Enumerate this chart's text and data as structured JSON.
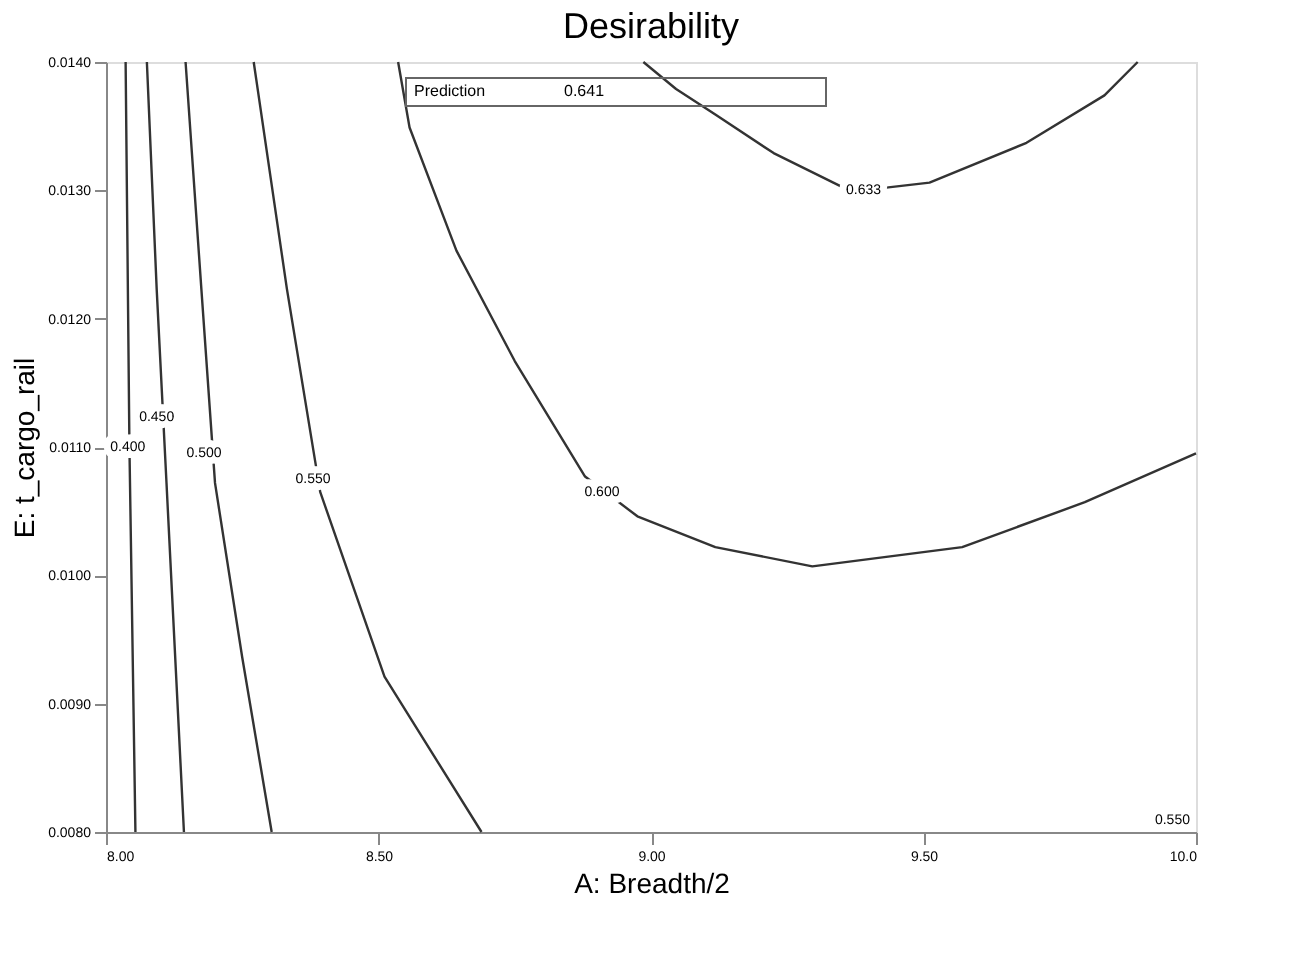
{
  "chart_data": {
    "type": "line",
    "title": "Desirability",
    "xlabel": "A: Breadth/2",
    "ylabel": "E: t_cargo_rail",
    "xlim": [
      8.0,
      10.0
    ],
    "ylim": [
      0.008,
      0.014
    ],
    "xticks": [
      {
        "value": 8.0,
        "label": "8.00"
      },
      {
        "value": 8.5,
        "label": "8.50"
      },
      {
        "value": 9.0,
        "label": "9.00"
      },
      {
        "value": 9.5,
        "label": "9.50"
      },
      {
        "value": 10.0,
        "label": "10.0"
      }
    ],
    "yticks": [
      {
        "value": 0.008,
        "label": "0.0080"
      },
      {
        "value": 0.009,
        "label": "0.0090"
      },
      {
        "value": 0.01,
        "label": "0.0100"
      },
      {
        "value": 0.011,
        "label": "0.0110"
      },
      {
        "value": 0.012,
        "label": "0.0120"
      },
      {
        "value": 0.013,
        "label": "0.0130"
      },
      {
        "value": 0.014,
        "label": "0.0140"
      }
    ],
    "grid": false,
    "marker": "none",
    "line_style": "solid",
    "series": [
      {
        "color": "#333333",
        "x": [
          8.986,
          9.046,
          9.118,
          9.225,
          9.368,
          9.511,
          9.689,
          9.832,
          9.893
        ],
        "values": [
          0.014,
          0.01379,
          0.01359,
          0.01329,
          0.01299,
          0.01306,
          0.01337,
          0.01374,
          0.014
        ]
      },
      {
        "color": "#333333",
        "x": [
          8.536,
          8.557,
          8.643,
          8.75,
          8.879,
          8.975,
          9.118,
          9.296,
          9.571,
          9.796,
          10.0
        ],
        "values": [
          0.014,
          0.01349,
          0.01253,
          0.01167,
          0.01077,
          0.01046,
          0.01022,
          0.01007,
          0.01022,
          0.01057,
          0.01095
        ]
      },
      {
        "color": "#333333",
        "x": [
          8.271,
          8.332,
          8.393,
          8.511,
          8.689
        ],
        "values": [
          0.014,
          0.01223,
          0.01065,
          0.00921,
          0.008
        ]
      },
      {
        "color": "#333333",
        "x": [
          8.146,
          8.175,
          8.2,
          8.25,
          8.304
        ],
        "values": [
          0.014,
          0.01223,
          0.01072,
          0.00936,
          0.008
        ]
      },
      {
        "color": "#333333",
        "x": [
          8.075,
          8.093,
          8.111,
          8.143
        ],
        "values": [
          0.014,
          0.01223,
          0.01072,
          0.008
        ]
      },
      {
        "color": "#333333",
        "x": [
          8.036,
          8.043,
          8.054
        ],
        "values": [
          0.014,
          0.011,
          0.008
        ]
      }
    ],
    "annotations": [
      {
        "text": "0.633",
        "x": 9.39,
        "y": 0.013
      },
      {
        "text": "0.600",
        "x": 8.91,
        "y": 0.01065
      },
      {
        "text": "0.550",
        "x": 8.38,
        "y": 0.01075
      },
      {
        "text": "0.500",
        "x": 8.18,
        "y": 0.01095
      },
      {
        "text": "0.450",
        "x": 8.093,
        "y": 0.01123
      },
      {
        "text": "0.400",
        "x": 8.04,
        "y": 0.011
      },
      "Prediction",
      "0.641",
      "0.550"
    ]
  }
}
